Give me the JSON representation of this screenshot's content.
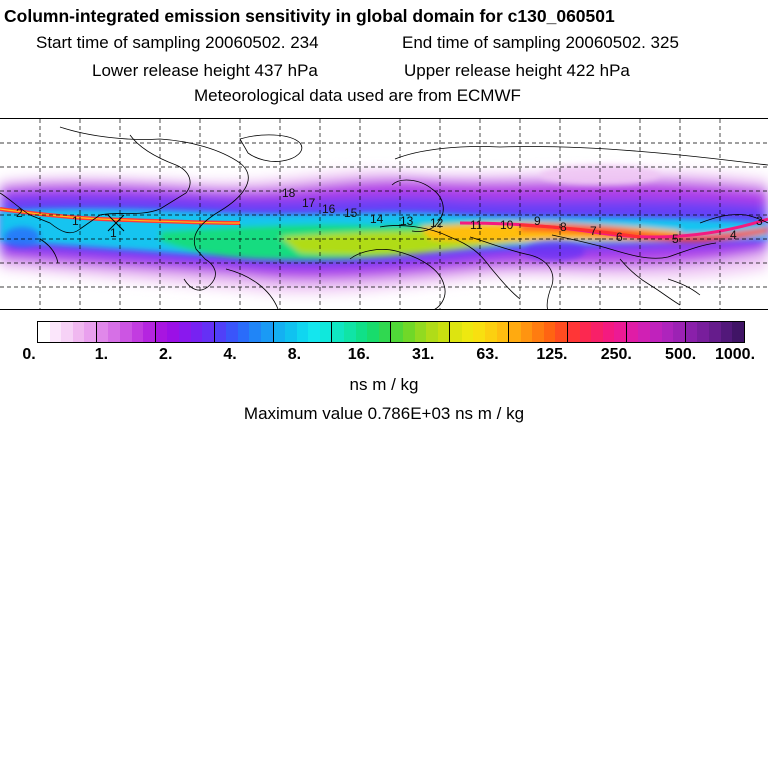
{
  "header": {
    "title": "Column-integrated emission sensitivity in global domain for c130_060501",
    "start_label": "Start time of sampling 20060502.   234",
    "end_label": "End time of sampling 20060502.   325",
    "lower_label": "Lower release height  437 hPa",
    "upper_label": "Upper release height  422 hPa",
    "met_label": "Meteorological data used are from ECMWF"
  },
  "map": {
    "contour_labels": [
      "2",
      "1",
      "18",
      "17",
      "16",
      "15",
      "14",
      "13",
      "12",
      "11",
      "10",
      "9",
      "8",
      "7",
      "6",
      "5",
      "4",
      "3",
      "1"
    ]
  },
  "colorbar": {
    "tick_labels": [
      "0.",
      "1.",
      "2.",
      "4.",
      "8.",
      "16.",
      "31.",
      "63.",
      "125.",
      "250.",
      "500.",
      "1000."
    ],
    "colors": [
      "#ffffff",
      "#fbe6fb",
      "#f6d2f6",
      "#f0b8f0",
      "#e9a0ee",
      "#e088ea",
      "#d670e6",
      "#cc55e3",
      "#c23ce0",
      "#b525e0",
      "#a815e0",
      "#9b10e6",
      "#8a18ee",
      "#7722f2",
      "#6530f5",
      "#5040f8",
      "#3a55fa",
      "#2a6cfa",
      "#2085f7",
      "#1a9af5",
      "#14b0f2",
      "#10c2f0",
      "#10d6f0",
      "#14e6ee",
      "#10e8dc",
      "#10e6c2",
      "#10e4a6",
      "#10e088",
      "#18dc6c",
      "#30d850",
      "#50d838",
      "#70d828",
      "#92da20",
      "#b0dc18",
      "#c8e010",
      "#dde410",
      "#eee810",
      "#f8e010",
      "#fcd010",
      "#ffbe10",
      "#ffaa10",
      "#ff9410",
      "#ff7c10",
      "#ff6412",
      "#ff4c20",
      "#ff3636",
      "#fc2850",
      "#f82068",
      "#f41a80",
      "#ec1a94",
      "#e01ca6",
      "#d020b4",
      "#c022bc",
      "#ae24bc",
      "#9c22b4",
      "#8a20aa",
      "#781e9c",
      "#661c8c",
      "#52187a",
      "#401466"
    ]
  },
  "legend": {
    "units": "ns m / kg",
    "max_value": "Maximum value  0.786E+03 ns m / kg"
  }
}
